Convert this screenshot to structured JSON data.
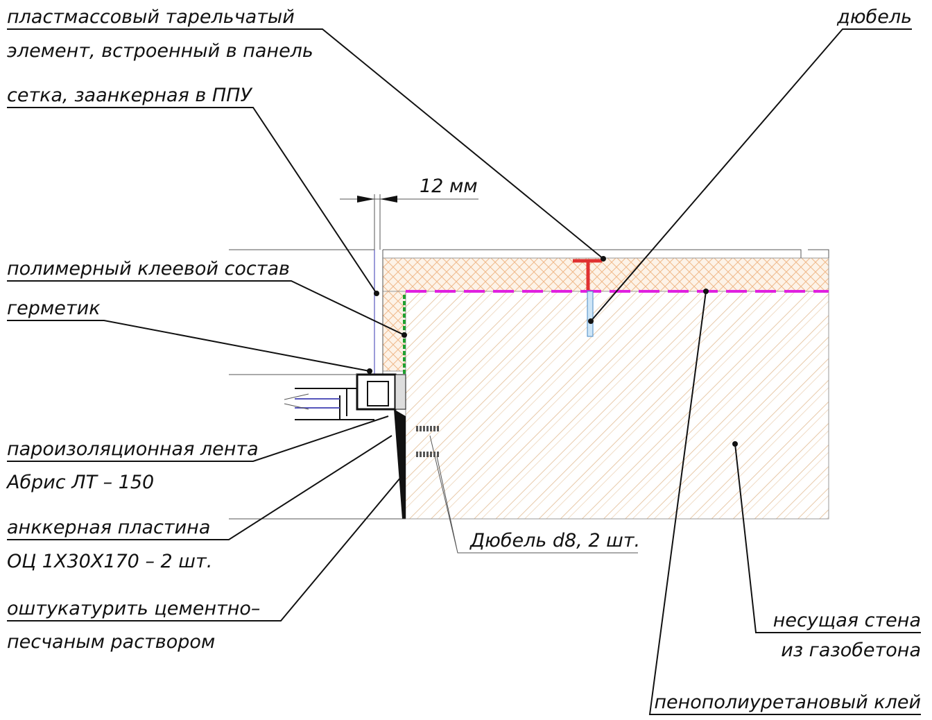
{
  "labels": [
    {
      "lines": [
        "пластмассовый тарельчатый",
        "элемент, встроенный в панель"
      ]
    },
    {
      "lines": [
        "сетка, заанкерная в ППУ"
      ]
    },
    {
      "lines": [
        "полимерный клеевой состав"
      ]
    },
    {
      "lines": [
        "герметик"
      ]
    },
    {
      "lines": [
        "пароизоляционная лента",
        "Абрис ЛТ – 150"
      ]
    },
    {
      "lines": [
        "анккерная пластина",
        "ОЦ 1Х30Х170 – 2 шт."
      ]
    },
    {
      "lines": [
        "оштукатурить цементно–",
        "песчаным раствором"
      ]
    },
    {
      "lines": [
        "дюбель"
      ]
    },
    {
      "lines": [
        "Дюбель d8, 2 шт."
      ]
    },
    {
      "lines": [
        "несущая стена",
        "из газобетона"
      ]
    },
    {
      "lines": [
        "пенополиуретановый клей"
      ]
    }
  ],
  "dimension": {
    "text": "12 мм"
  }
}
